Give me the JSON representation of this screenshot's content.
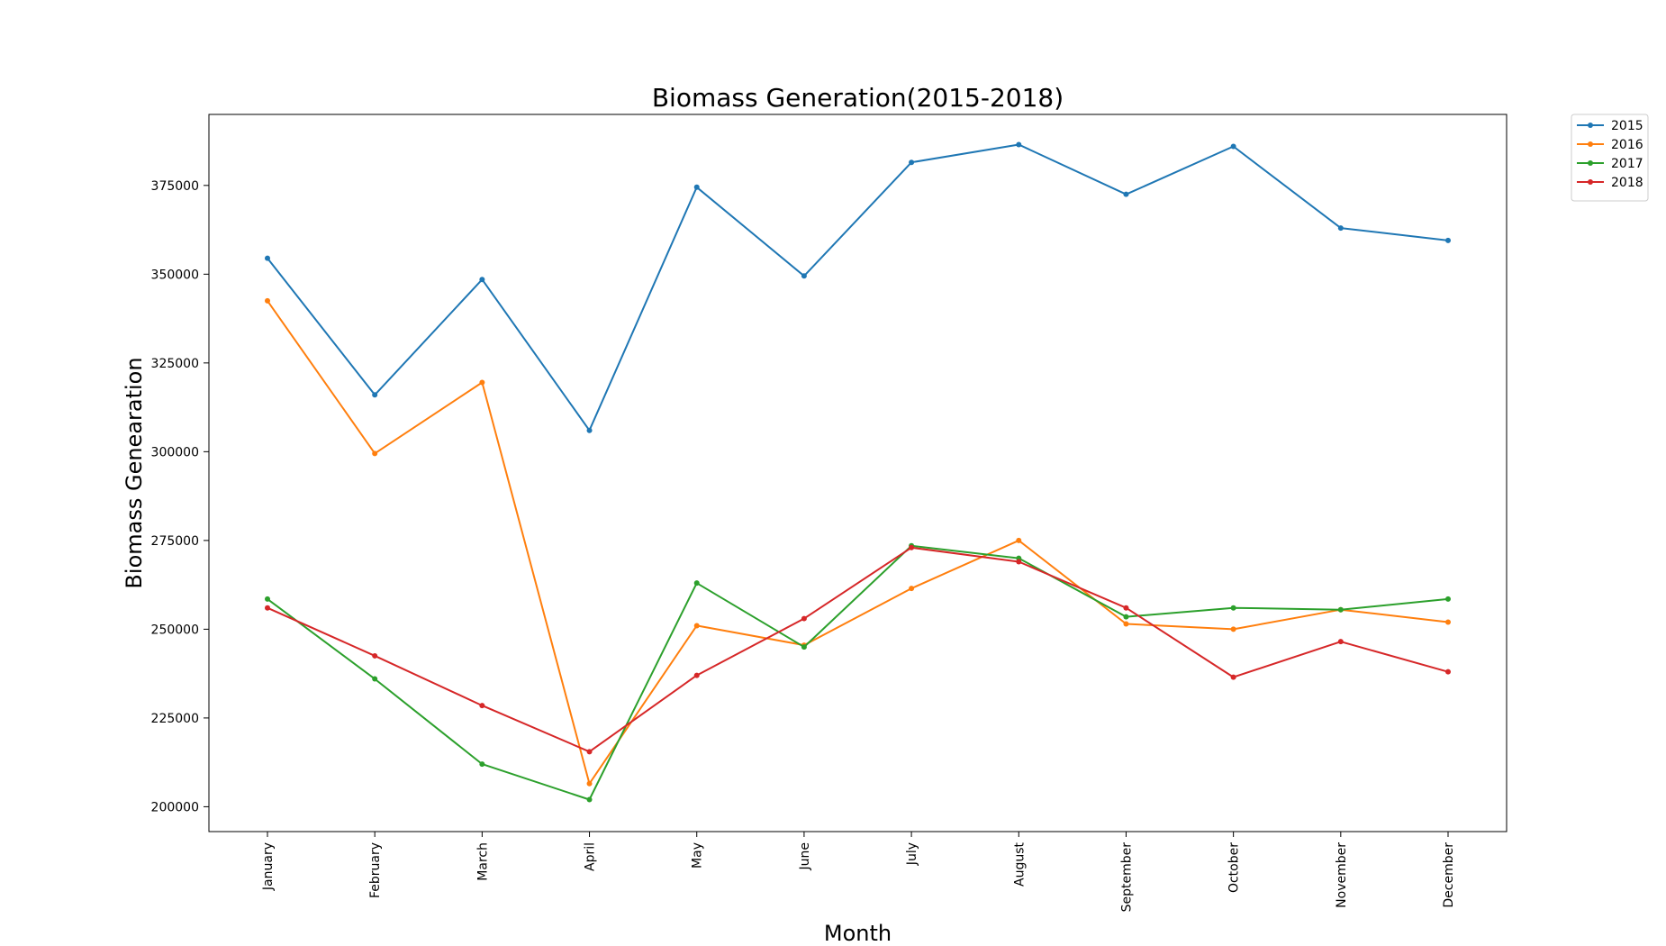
{
  "chart_data": {
    "type": "line",
    "title": "Biomass Generation(2015-2018)",
    "xlabel": "Month",
    "ylabel": "Biomass Genearation",
    "categories": [
      "January",
      "February",
      "March",
      "April",
      "May",
      "June",
      "July",
      "August",
      "September",
      "October",
      "November",
      "December"
    ],
    "yticks": [
      200000,
      225000,
      250000,
      275000,
      300000,
      325000,
      350000,
      375000
    ],
    "ytick_labels": [
      "200000",
      "225000",
      "250000",
      "275000",
      "300000",
      "325000",
      "350000",
      "375000"
    ],
    "ylim": [
      193000,
      395000
    ],
    "grid": false,
    "legend_position": "outside-top-right",
    "series": [
      {
        "name": "2015",
        "color": "#1f77b4",
        "values": [
          354500,
          316000,
          348500,
          306000,
          374500,
          349500,
          381500,
          386500,
          372500,
          386000,
          363000,
          359500
        ]
      },
      {
        "name": "2016",
        "color": "#ff7f0e",
        "values": [
          342500,
          299500,
          319500,
          206500,
          251000,
          245500,
          261500,
          275000,
          251500,
          250000,
          255500,
          252000
        ]
      },
      {
        "name": "2017",
        "color": "#2ca02c",
        "values": [
          258500,
          236000,
          212000,
          202000,
          263000,
          245000,
          273500,
          270000,
          253500,
          256000,
          255500,
          258500
        ]
      },
      {
        "name": "2018",
        "color": "#d62728",
        "values": [
          256000,
          242500,
          228500,
          215500,
          237000,
          253000,
          273000,
          269000,
          256000,
          236500,
          246500,
          238000
        ]
      }
    ]
  }
}
